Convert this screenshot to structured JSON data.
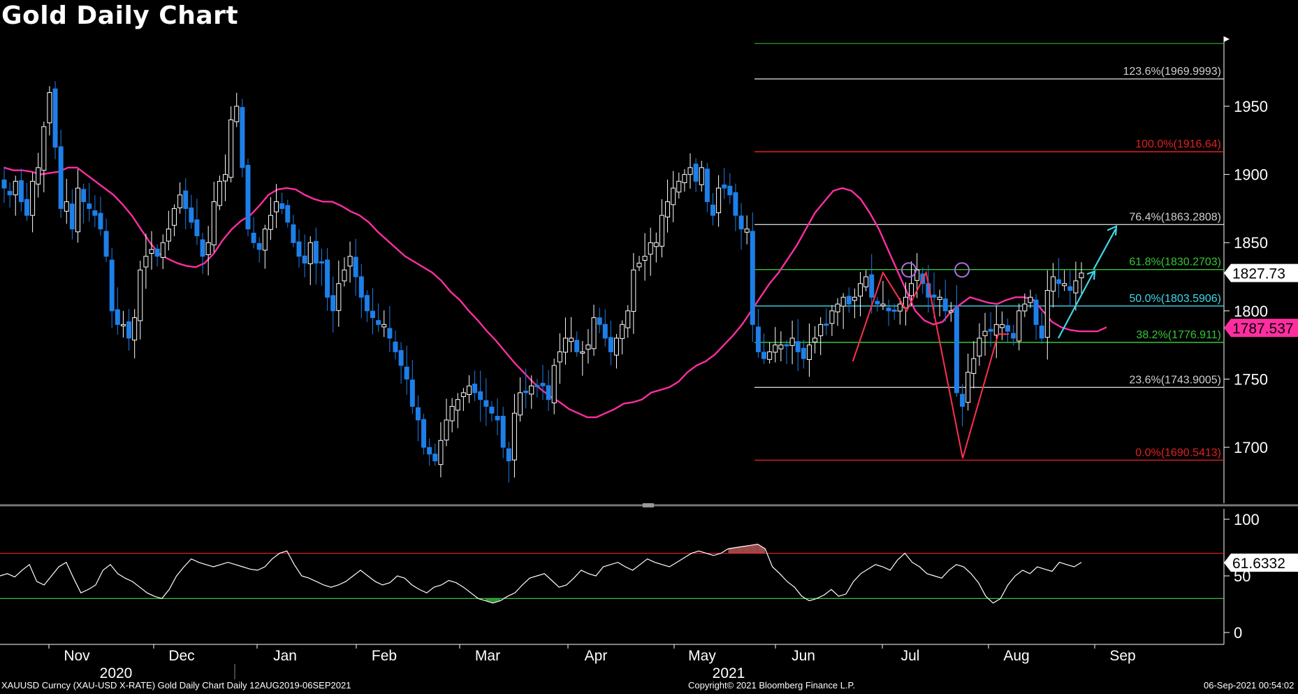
{
  "title": "Gold Daily Chart",
  "footer": {
    "left": "XAUUSD Curncy (XAU-USD X-RATE) Gold Daily Chart  Daily 12AUG2019-06SEP2021",
    "center": "Copyright© 2021 Bloomberg Finance L.P.",
    "right": "06-Sep-2021 00:54:02"
  },
  "colors": {
    "background": "#000000",
    "candle_up": "#ffffff",
    "candle_down": "#1e7fe8",
    "moving_average": "#ff2ea0",
    "rsi_line": "#ffffff",
    "fib_red": "#e02020",
    "fib_white": "#cfcfcf",
    "fib_green": "#36c536",
    "fib_cyan": "#40d8e8",
    "arrow_cyan": "#40d8e8",
    "pattern_red": "#ff3050",
    "circle_purple": "#b070e0",
    "ma_price_tag": "#ff2ea0"
  },
  "chart_data": [
    {
      "type": "candlestick",
      "panel": "price",
      "ylim": [
        1660,
        2000
      ],
      "yticks": [
        "1700",
        "1750",
        "1800",
        "1850",
        "1900",
        "1950"
      ],
      "xticks": [
        "Nov",
        "Dec",
        "Jan",
        "Feb",
        "Mar",
        "Apr",
        "May",
        "Jun",
        "Jul",
        "Aug",
        "Sep"
      ],
      "year_labels": [
        "2020",
        "2021"
      ],
      "last_price": "1827.73",
      "moving_average_last": "1787.537",
      "fibonacci_levels": [
        {
          "label": "123.6%(1969.9993)",
          "value": 1969.9993,
          "color": "white"
        },
        {
          "label": "100.0%(1916.64)",
          "value": 1916.64,
          "color": "red"
        },
        {
          "label": "76.4%(1863.2808)",
          "value": 1863.2808,
          "color": "white"
        },
        {
          "label": "61.8%(1830.2703)",
          "value": 1830.2703,
          "color": "green"
        },
        {
          "label": "50.0%(1803.5906)",
          "value": 1803.5906,
          "color": "cyan"
        },
        {
          "label": "38.2%(1776.911)",
          "value": 1776.911,
          "color": "green"
        },
        {
          "label": "23.6%(1743.9005)",
          "value": 1743.9005,
          "color": "white"
        },
        {
          "label": "0.0%(1690.5413)",
          "value": 1690.5413,
          "color": "red"
        }
      ],
      "top_level": 1996,
      "close_path": [
        1890,
        1885,
        1895,
        1880,
        1870,
        1895,
        1905,
        1935,
        1960,
        1920,
        1875,
        1880,
        1860,
        1890,
        1880,
        1875,
        1870,
        1860,
        1840,
        1800,
        1790,
        1790,
        1780,
        1795,
        1830,
        1840,
        1845,
        1840,
        1850,
        1860,
        1875,
        1885,
        1875,
        1865,
        1855,
        1840,
        1850,
        1880,
        1895,
        1900,
        1940,
        1950,
        1905,
        1860,
        1850,
        1845,
        1860,
        1870,
        1880,
        1875,
        1865,
        1850,
        1840,
        1835,
        1850,
        1835,
        1835,
        1810,
        1800,
        1820,
        1830,
        1840,
        1825,
        1810,
        1800,
        1795,
        1790,
        1790,
        1780,
        1770,
        1760,
        1750,
        1730,
        1720,
        1700,
        1695,
        1690,
        1705,
        1720,
        1730,
        1735,
        1740,
        1745,
        1740,
        1735,
        1730,
        1725,
        1720,
        1700,
        1690,
        1725,
        1740,
        1740,
        1745,
        1745,
        1745,
        1735,
        1760,
        1770,
        1780,
        1780,
        1770,
        1770,
        1775,
        1795,
        1790,
        1780,
        1770,
        1780,
        1790,
        1800,
        1830,
        1835,
        1840,
        1850,
        1850,
        1870,
        1880,
        1890,
        1895,
        1900,
        1905,
        1895,
        1905,
        1880,
        1870,
        1890,
        1890,
        1885,
        1870,
        1860,
        1860,
        1790,
        1770,
        1765,
        1770,
        1775,
        1775,
        1775,
        1780,
        1770,
        1765,
        1775,
        1780,
        1790,
        1790,
        1800,
        1805,
        1810,
        1805,
        1810,
        1820,
        1825,
        1810,
        1805,
        1805,
        1800,
        1800,
        1805,
        1810,
        1820,
        1830,
        1820,
        1810,
        1810,
        1810,
        1800,
        1800,
        1740,
        1730,
        1755,
        1765,
        1780,
        1785,
        1785,
        1790,
        1790,
        1785,
        1780,
        1800,
        1805,
        1810,
        1790,
        1780,
        1815,
        1825,
        1820,
        1820,
        1815,
        1822,
        1827.73
      ],
      "ma_path": [
        1905,
        1903,
        1903,
        1902,
        1900,
        1901,
        1902,
        1905,
        1905,
        1900,
        1895,
        1890,
        1885,
        1878,
        1870,
        1860,
        1850,
        1842,
        1838,
        1835,
        1833,
        1832,
        1835,
        1842,
        1852,
        1860,
        1866,
        1870,
        1877,
        1885,
        1889,
        1890,
        1889,
        1885,
        1882,
        1880,
        1880,
        1877,
        1873,
        1870,
        1865,
        1858,
        1852,
        1846,
        1840,
        1836,
        1832,
        1828,
        1822,
        1814,
        1808,
        1800,
        1793,
        1785,
        1778,
        1770,
        1762,
        1755,
        1748,
        1742,
        1737,
        1733,
        1728,
        1725,
        1722,
        1722,
        1725,
        1728,
        1732,
        1733,
        1735,
        1740,
        1742,
        1744,
        1748,
        1755,
        1760,
        1763,
        1768,
        1775,
        1782,
        1790,
        1800,
        1810,
        1820,
        1828,
        1838,
        1848,
        1860,
        1872,
        1880,
        1888,
        1890,
        1888,
        1882,
        1872,
        1860,
        1845,
        1830,
        1815,
        1800,
        1793,
        1790,
        1792,
        1800,
        1805,
        1810,
        1808,
        1806,
        1805,
        1808,
        1810,
        1810,
        1808,
        1800,
        1792,
        1788,
        1786,
        1785,
        1785,
        1785,
        1788
      ]
    },
    {
      "type": "line",
      "panel": "rsi",
      "ylim": [
        0,
        100
      ],
      "yticks": [
        "0",
        "50",
        "100"
      ],
      "overbought": 70,
      "oversold": 30,
      "last_value": "61.6332",
      "values": [
        50,
        52,
        49,
        55,
        60,
        45,
        42,
        50,
        58,
        62,
        48,
        35,
        38,
        42,
        55,
        60,
        52,
        48,
        45,
        40,
        35,
        32,
        30,
        38,
        50,
        58,
        65,
        62,
        60,
        58,
        60,
        62,
        60,
        58,
        56,
        55,
        58,
        65,
        70,
        72,
        60,
        50,
        48,
        45,
        42,
        40,
        42,
        45,
        50,
        55,
        50,
        45,
        42,
        44,
        50,
        48,
        42,
        38,
        35,
        40,
        42,
        46,
        44,
        40,
        35,
        30,
        28,
        26,
        28,
        32,
        35,
        42,
        48,
        50,
        52,
        46,
        40,
        42,
        48,
        55,
        52,
        50,
        58,
        60,
        62,
        58,
        55,
        60,
        65,
        62,
        60,
        58,
        62,
        66,
        70,
        72,
        70,
        68,
        70,
        74,
        75,
        76,
        77,
        78,
        74,
        58,
        52,
        45,
        40,
        32,
        28,
        30,
        33,
        38,
        32,
        34,
        45,
        52,
        56,
        60,
        58,
        55,
        64,
        70,
        62,
        58,
        52,
        50,
        48,
        55,
        60,
        58,
        52,
        44,
        32,
        26,
        30,
        42,
        50,
        55,
        52,
        58,
        56,
        54,
        62,
        60,
        58,
        62
      ]
    }
  ]
}
